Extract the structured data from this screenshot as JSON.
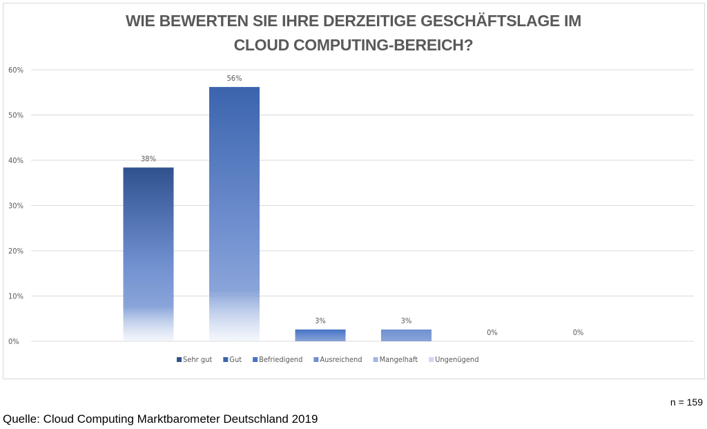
{
  "chart_data": {
    "type": "bar",
    "title_lines": [
      "WIE BEWERTEN SIE IHRE DERZEITIGE GESCHÄFTSLAGE IM",
      "CLOUD COMPUTING-BEREICH?"
    ],
    "categories": [
      "Sehr gut",
      "Gut",
      "Befriedigend",
      "Ausreichend",
      "Mangelhaft",
      "Ungenügend"
    ],
    "values": [
      38.4,
      56.2,
      2.6,
      2.6,
      0,
      0
    ],
    "data_labels": [
      "38%",
      "56%",
      "3%",
      "3%",
      "0%",
      "0%"
    ],
    "ylim": [
      0,
      60
    ],
    "yticks": [
      "0%",
      "10%",
      "20%",
      "30%",
      "40%",
      "50%",
      "60%"
    ],
    "grid": true,
    "legend_placement": "bottom",
    "colors": [
      "#2f528f",
      "#3b64ad",
      "#4472c4",
      "#7090d0",
      "#a3b7e2",
      "#cdd8f0"
    ],
    "label_color": "#595959",
    "gridline_color": "#d9d9d9"
  },
  "footer": {
    "sample_size": "n = 159",
    "source": "Quelle: Cloud Computing Marktbarometer Deutschland 2019"
  }
}
